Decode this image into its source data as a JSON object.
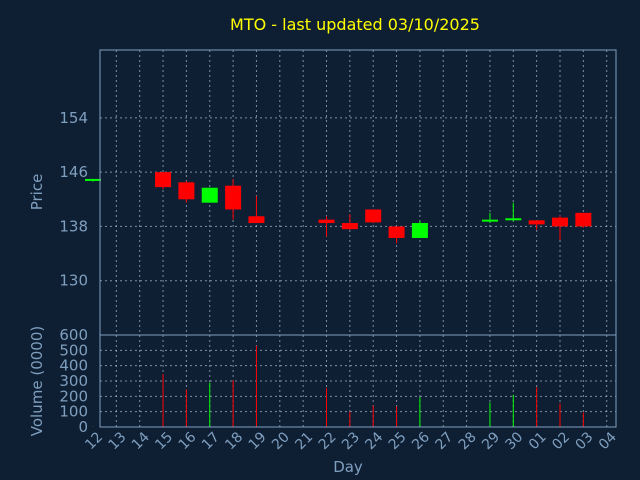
{
  "chart_data": {
    "type": "candlestick",
    "title": "MTO - last updated 03/10/2025",
    "xlabel": "Day",
    "price_panel": {
      "ylabel": "Price",
      "ylim": [
        122,
        164
      ],
      "yticks": [
        130,
        138,
        146,
        154
      ],
      "grid": true
    },
    "volume_panel": {
      "ylabel": "Volume (0000)",
      "ylim": [
        0,
        600
      ],
      "yticks": [
        0,
        100,
        200,
        300,
        400,
        500,
        600
      ],
      "grid": true
    },
    "x_tick_labels": [
      "12",
      "13",
      "14",
      "15",
      "16",
      "17",
      "18",
      "19",
      "20",
      "21",
      "22",
      "23",
      "24",
      "25",
      "26",
      "27",
      "28",
      "29",
      "30",
      "01",
      "02",
      "03",
      "04"
    ],
    "colors": {
      "up": "#00ff00",
      "down": "#ff0000",
      "background": "#0f1f33",
      "title": "#ffff00",
      "axis_text": "#7f9fbf"
    },
    "candles": [
      {
        "day": "12",
        "open": 144.8,
        "high": 145.0,
        "low": 144.6,
        "close": 145.0,
        "volume": 2
      },
      {
        "day": "15",
        "open": 146.0,
        "high": 146.0,
        "low": 143.5,
        "close": 143.8,
        "volume": 345
      },
      {
        "day": "16",
        "open": 144.5,
        "high": 144.7,
        "low": 141.5,
        "close": 142.0,
        "volume": 245
      },
      {
        "day": "17",
        "open": 141.5,
        "high": 143.7,
        "low": 141.5,
        "close": 143.7,
        "volume": 290
      },
      {
        "day": "18",
        "open": 144.0,
        "high": 145.0,
        "low": 139.0,
        "close": 140.5,
        "volume": 305
      },
      {
        "day": "19",
        "open": 139.5,
        "high": 142.5,
        "low": 138.5,
        "close": 138.5,
        "volume": 530
      },
      {
        "day": "22",
        "open": 139.0,
        "high": 139.5,
        "low": 136.5,
        "close": 138.5,
        "volume": 255
      },
      {
        "day": "23",
        "open": 138.5,
        "high": 139.8,
        "low": 137.5,
        "close": 137.6,
        "volume": 100
      },
      {
        "day": "24",
        "open": 140.5,
        "high": 140.5,
        "low": 138.5,
        "close": 138.6,
        "volume": 140
      },
      {
        "day": "25",
        "open": 138.0,
        "high": 138.0,
        "low": 135.5,
        "close": 136.3,
        "volume": 135
      },
      {
        "day": "26",
        "open": 136.3,
        "high": 138.8,
        "low": 136.3,
        "close": 138.5,
        "volume": 195
      },
      {
        "day": "29",
        "open": 138.8,
        "high": 140.0,
        "low": 138.5,
        "close": 139.0,
        "volume": 160
      },
      {
        "day": "30",
        "open": 139.0,
        "high": 141.5,
        "low": 138.8,
        "close": 139.2,
        "volume": 210
      },
      {
        "day": "01",
        "open": 138.9,
        "high": 138.9,
        "low": 137.5,
        "close": 138.3,
        "volume": 260
      },
      {
        "day": "02",
        "open": 139.3,
        "high": 139.6,
        "low": 136.0,
        "close": 138.0,
        "volume": 155
      },
      {
        "day": "03",
        "open": 140.0,
        "high": 140.0,
        "low": 137.8,
        "close": 138.0,
        "volume": 95
      }
    ]
  }
}
